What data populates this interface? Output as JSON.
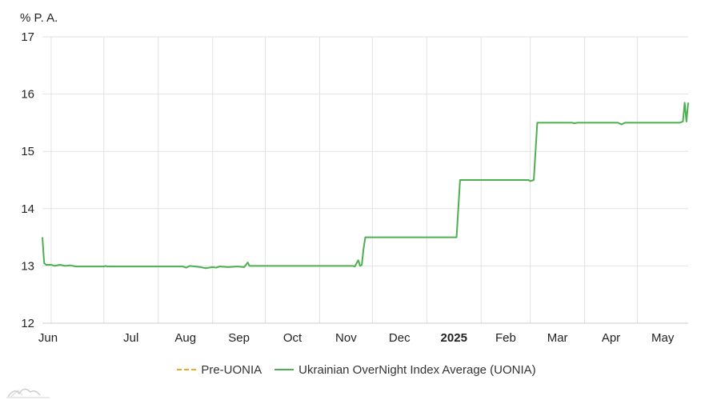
{
  "chart_data": {
    "type": "line",
    "ylabel": "% P. A.",
    "ylim": [
      12,
      17
    ],
    "yticks": [
      "12",
      "13",
      "14",
      "15",
      "16",
      "17"
    ],
    "xlim": [
      "2024-05-27",
      "2025-05-30"
    ],
    "xticks": [
      {
        "date": "2024-06-01",
        "label": "Jun",
        "bold": false
      },
      {
        "date": "2024-07-01",
        "label": "Jul",
        "bold": false
      },
      {
        "date": "2024-08-01",
        "label": "Aug",
        "bold": false
      },
      {
        "date": "2024-09-01",
        "label": "Sep",
        "bold": false
      },
      {
        "date": "2024-10-01",
        "label": "Oct",
        "bold": false
      },
      {
        "date": "2024-11-01",
        "label": "Nov",
        "bold": false
      },
      {
        "date": "2024-12-01",
        "label": "Dec",
        "bold": false
      },
      {
        "date": "2025-01-01",
        "label": "2025",
        "bold": true
      },
      {
        "date": "2025-02-01",
        "label": "Feb",
        "bold": false
      },
      {
        "date": "2025-03-01",
        "label": "Mar",
        "bold": false
      },
      {
        "date": "2025-04-01",
        "label": "Apr",
        "bold": false
      },
      {
        "date": "2025-05-01",
        "label": "May",
        "bold": false
      }
    ],
    "grid": true,
    "legend_position": "bottom-center",
    "series": [
      {
        "name": "Pre-UONIA",
        "color": "#f5a623",
        "style": "dashed",
        "points": []
      },
      {
        "name": "Ukrainian OverNight Index Average (UONIA)",
        "color": "#4caf50",
        "style": "solid",
        "points": [
          [
            "2024-05-27",
            13.5
          ],
          [
            "2024-05-28",
            13.05
          ],
          [
            "2024-05-29",
            13.02
          ],
          [
            "2024-06-01",
            13.02
          ],
          [
            "2024-06-03",
            13.0
          ],
          [
            "2024-06-06",
            13.02
          ],
          [
            "2024-06-09",
            13.0
          ],
          [
            "2024-06-12",
            13.01
          ],
          [
            "2024-06-15",
            12.99
          ],
          [
            "2024-07-01",
            12.99
          ],
          [
            "2024-07-02",
            13.0
          ],
          [
            "2024-07-03",
            12.99
          ],
          [
            "2024-08-15",
            12.99
          ],
          [
            "2024-08-17",
            12.97
          ],
          [
            "2024-08-19",
            13.0
          ],
          [
            "2024-08-25",
            12.98
          ],
          [
            "2024-08-28",
            12.96
          ],
          [
            "2024-09-01",
            12.98
          ],
          [
            "2024-09-03",
            12.97
          ],
          [
            "2024-09-05",
            12.99
          ],
          [
            "2024-09-10",
            12.98
          ],
          [
            "2024-09-15",
            12.99
          ],
          [
            "2024-09-19",
            12.98
          ],
          [
            "2024-09-21",
            13.06
          ],
          [
            "2024-09-22",
            13.0
          ],
          [
            "2024-11-20",
            13.0
          ],
          [
            "2024-11-21",
            12.99
          ],
          [
            "2024-11-23",
            13.1
          ],
          [
            "2024-11-24",
            13.0
          ],
          [
            "2024-11-25",
            13.02
          ],
          [
            "2024-11-26",
            13.3
          ],
          [
            "2024-11-27",
            13.5
          ],
          [
            "2025-01-18",
            13.5
          ],
          [
            "2025-01-20",
            14.5
          ],
          [
            "2025-02-28",
            14.5
          ],
          [
            "2025-03-01",
            14.48
          ],
          [
            "2025-03-03",
            14.5
          ],
          [
            "2025-03-05",
            15.5
          ],
          [
            "2025-03-25",
            15.5
          ],
          [
            "2025-03-26",
            15.49
          ],
          [
            "2025-03-28",
            15.5
          ],
          [
            "2025-04-20",
            15.5
          ],
          [
            "2025-04-22",
            15.47
          ],
          [
            "2025-04-24",
            15.5
          ],
          [
            "2025-05-25",
            15.5
          ],
          [
            "2025-05-27",
            15.52
          ],
          [
            "2025-05-28",
            15.85
          ],
          [
            "2025-05-29",
            15.52
          ],
          [
            "2025-05-30",
            15.85
          ]
        ]
      }
    ]
  }
}
